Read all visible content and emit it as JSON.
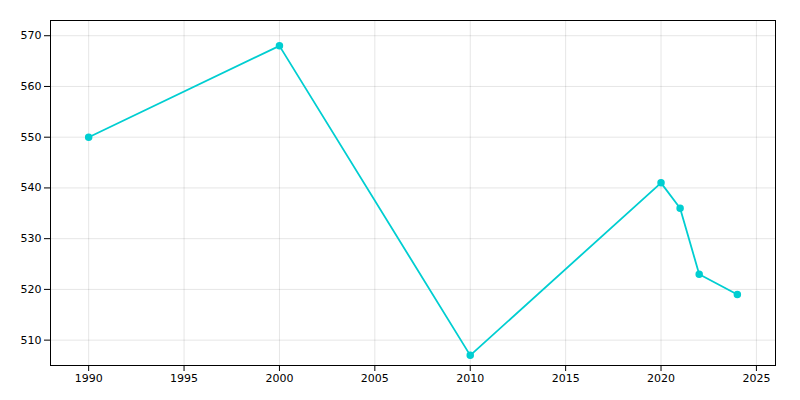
{
  "chart_data": {
    "type": "line",
    "x": [
      1990,
      2000,
      2010,
      2020,
      2021,
      2022,
      2024
    ],
    "values": [
      550,
      568,
      507,
      541,
      536,
      523,
      519
    ],
    "color": "#00CED1",
    "marker": "circle",
    "xlim": [
      1988,
      2026
    ],
    "ylim": [
      505,
      573
    ],
    "xticks": [
      1990,
      1995,
      2000,
      2005,
      2010,
      2015,
      2020,
      2025
    ],
    "yticks": [
      510,
      520,
      530,
      540,
      550,
      560,
      570
    ],
    "grid": true
  }
}
